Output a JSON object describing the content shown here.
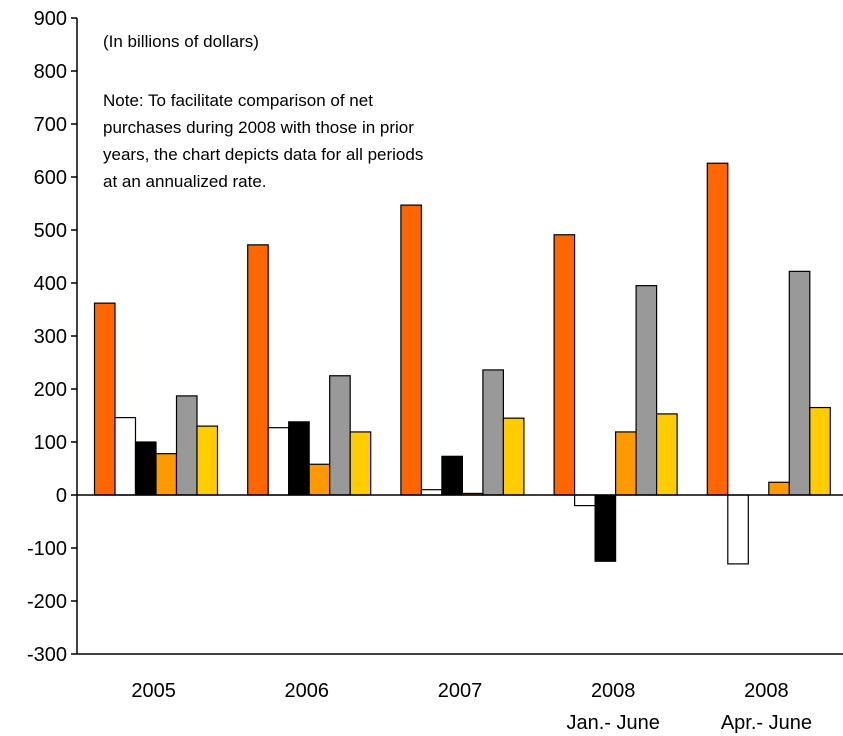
{
  "chart_data": {
    "type": "bar",
    "units_note": "(In billions of dollars)",
    "note_lines": [
      "Note: To facilitate comparison of net",
      "purchases during 2008 with those in prior",
      "years, the chart depicts data for all periods",
      "at an annualized rate."
    ],
    "categories": [
      "2005",
      "2006",
      "2007",
      "2008",
      "2008"
    ],
    "category_sublabels": [
      "",
      "",
      "",
      "Jan.- June",
      "Apr.- June"
    ],
    "ylim": [
      -300,
      900
    ],
    "yticks": [
      900,
      800,
      700,
      600,
      500,
      400,
      300,
      200,
      100,
      0,
      -100,
      -200,
      -300
    ],
    "grid": false,
    "legend": "none",
    "series": [
      {
        "color": "#FF6600",
        "values": [
          362,
          472,
          547,
          491,
          626
        ]
      },
      {
        "color": "#FFFFFF",
        "values": [
          146,
          127,
          10,
          -20,
          -130
        ]
      },
      {
        "color": "#000000",
        "values": [
          100,
          138,
          73,
          -125,
          0
        ]
      },
      {
        "color": "#FF9900",
        "values": [
          78,
          58,
          3,
          119,
          24
        ]
      },
      {
        "color": "#999999",
        "values": [
          187,
          225,
          236,
          395,
          422
        ]
      },
      {
        "color": "#FFCC00",
        "values": [
          130,
          119,
          145,
          153,
          165
        ]
      }
    ]
  }
}
